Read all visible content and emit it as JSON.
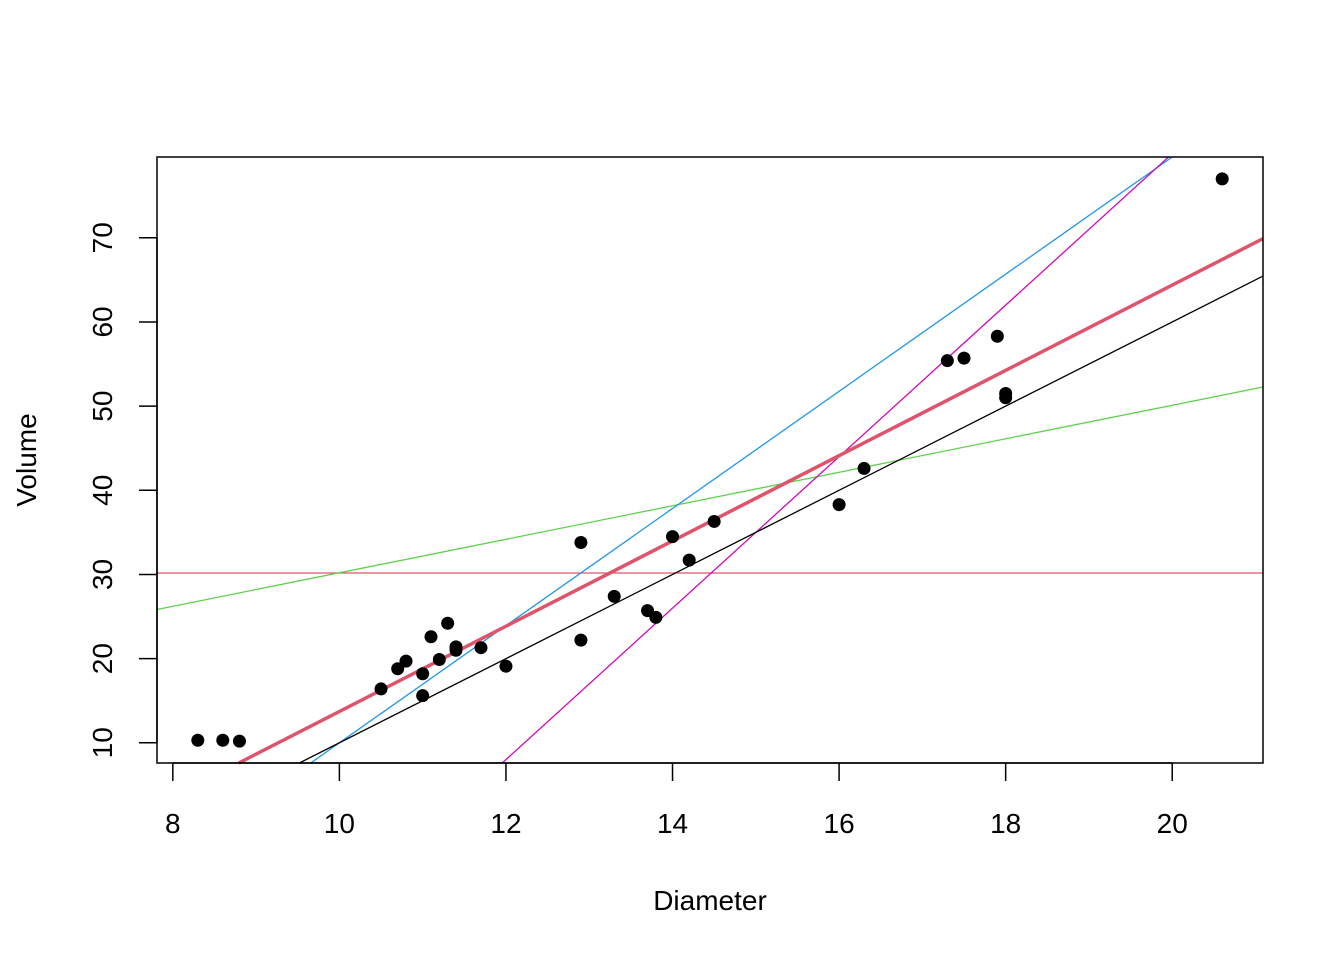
{
  "chart_data": {
    "type": "scatter",
    "title": "",
    "xlabel": "Diameter",
    "ylabel": "Volume",
    "xlim": [
      7.81,
      21.09
    ],
    "ylim": [
      7.6,
      79.6
    ],
    "xticks": [
      8,
      10,
      12,
      14,
      16,
      18,
      20
    ],
    "yticks": [
      10,
      20,
      30,
      40,
      50,
      60,
      70
    ],
    "grid": false,
    "legend": "none",
    "points": {
      "x": [
        8.3,
        8.6,
        8.8,
        10.5,
        10.7,
        10.8,
        11.0,
        11.0,
        11.1,
        11.2,
        11.3,
        11.4,
        11.4,
        11.7,
        12.0,
        12.9,
        12.9,
        13.3,
        13.7,
        13.8,
        14.0,
        14.2,
        14.5,
        16.0,
        16.3,
        17.3,
        17.5,
        17.9,
        18.0,
        18.0,
        20.6
      ],
      "y": [
        10.3,
        10.3,
        10.2,
        16.4,
        18.8,
        19.7,
        15.6,
        18.2,
        22.6,
        19.9,
        24.2,
        21.0,
        21.4,
        21.3,
        19.1,
        22.2,
        33.8,
        27.4,
        25.7,
        24.9,
        34.5,
        31.7,
        36.3,
        38.3,
        42.6,
        55.4,
        55.7,
        58.3,
        51.5,
        51.0,
        77.0
      ],
      "color": "#000000"
    },
    "lines": [
      {
        "intercept": 30.17,
        "slope": 0,
        "color": "#DF536B",
        "width": 1.3
      },
      {
        "intercept": 10.3,
        "slope": 1.99,
        "color": "#61D04F",
        "width": 1.3
      },
      {
        "intercept": -59.6,
        "slope": 6.96,
        "color": "#2297E6",
        "width": 1.3
      },
      {
        "intercept": -100.0,
        "slope": 9.0,
        "color": "#CD0BBC",
        "width": 1.3
      },
      {
        "intercept": -40.0,
        "slope": 5.0,
        "color": "#000000",
        "width": 1.3
      },
      {
        "intercept": -36.94,
        "slope": 5.066,
        "color": "#DF536B",
        "width": 3.5
      }
    ]
  }
}
